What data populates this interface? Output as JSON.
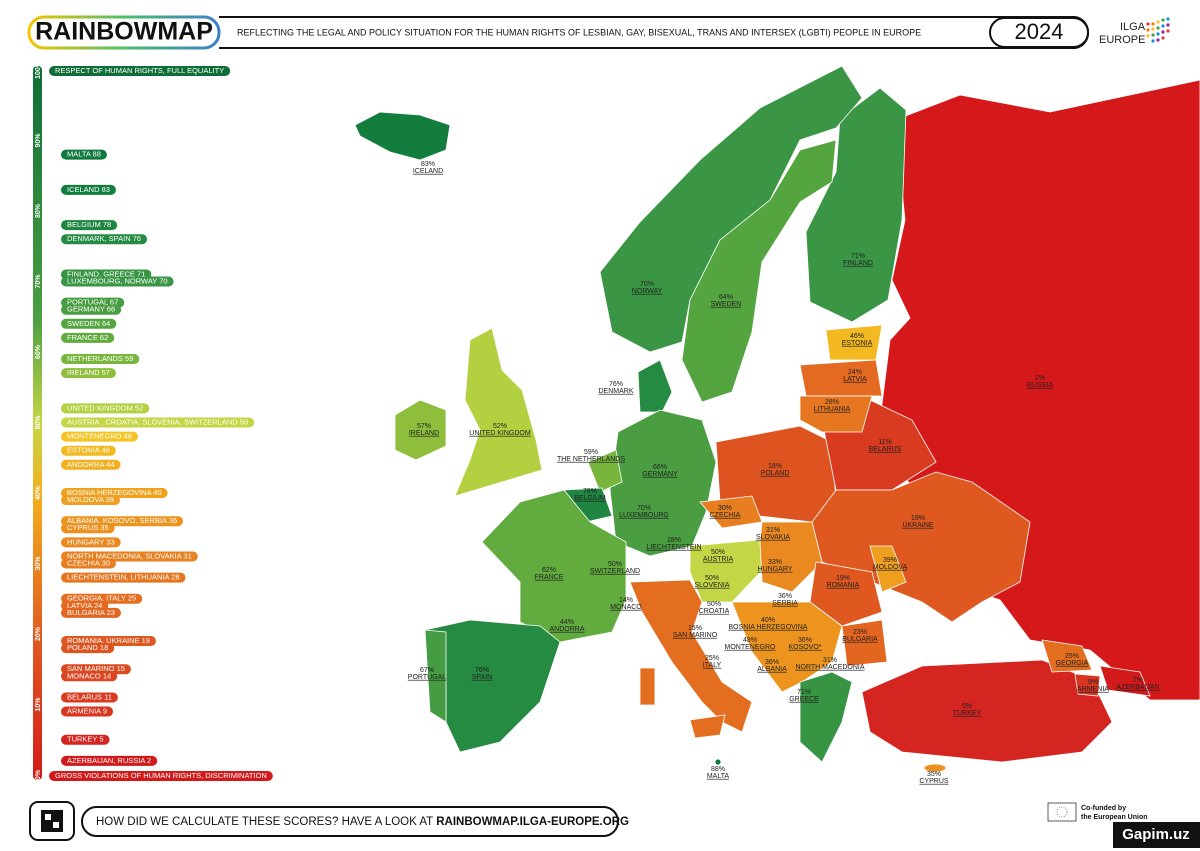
{
  "header": {
    "logo": "RAINBOWMAP",
    "subtitle": "REFLECTING THE LEGAL AND POLICY SITUATION FOR THE HUMAN RIGHTS OF LESBIAN, GAY, BISEXUAL, TRANS AND INTERSEX (LGBTI) PEOPLE IN EUROPE",
    "year": "2024",
    "org_line1": "ILGA",
    "org_line2": "EUROPE"
  },
  "scale": {
    "top_label": "RESPECT OF HUMAN RIGHTS, FULL EQUALITY",
    "bottom_label": "GROSS VIOLATIONS OF HUMAN RIGHTS, DISCRIMINATION",
    "range": [
      0,
      100
    ],
    "ticks": [
      {
        "value": 100,
        "label": "100%"
      },
      {
        "value": 90,
        "label": "90%"
      },
      {
        "value": 80,
        "label": "80%"
      },
      {
        "value": 70,
        "label": "70%"
      },
      {
        "value": 60,
        "label": "60%"
      },
      {
        "value": 50,
        "label": "50%"
      },
      {
        "value": 40,
        "label": "40%"
      },
      {
        "value": 30,
        "label": "30%"
      },
      {
        "value": 20,
        "label": "20%"
      },
      {
        "value": 10,
        "label": "10%"
      },
      {
        "value": 0,
        "label": "0%"
      }
    ],
    "items": [
      {
        "label": "MALTA 88",
        "value": 88,
        "color": "#0f7a3c"
      },
      {
        "label": "ICELAND 83",
        "value": 83,
        "color": "#137d3d"
      },
      {
        "label": "BELGIUM 78",
        "value": 78,
        "color": "#1f8641"
      },
      {
        "label": "DENMARK, SPAIN 76",
        "value": 76,
        "color": "#258a42"
      },
      {
        "label": "FINLAND, GREECE 71",
        "value": 71,
        "color": "#369443"
      },
      {
        "label": "LUXEMBOURG, NORWAY 70",
        "value": 70,
        "color": "#3a9644"
      },
      {
        "label": "PORTUGAL 67",
        "value": 67,
        "color": "#459c42"
      },
      {
        "label": "GERMANY 66",
        "value": 66,
        "color": "#4a9e41"
      },
      {
        "label": "SWEDEN 64",
        "value": 64,
        "color": "#54a540"
      },
      {
        "label": "FRANCE 62",
        "value": 62,
        "color": "#62ab3f"
      },
      {
        "label": "NETHERLANDS 59",
        "value": 59,
        "color": "#78b53d"
      },
      {
        "label": "IRELAND 57",
        "value": 57,
        "color": "#8ebe3c"
      },
      {
        "label": "UNITED KINGDOM 52",
        "value": 52,
        "color": "#b2d040"
      },
      {
        "label": "AUSTRIA , CROATIA, SLOVENIA, SWITZERLAND 50",
        "value": 50,
        "color": "#c4d646"
      },
      {
        "label": "MONTENEGRO 48",
        "value": 48,
        "color": "#f3c424"
      },
      {
        "label": "ESTONIA 46",
        "value": 46,
        "color": "#f3b921"
      },
      {
        "label": "ANDORRA 44",
        "value": 44,
        "color": "#f2b020"
      },
      {
        "label": "BOSNIA HERZEGOVINA 40",
        "value": 40,
        "color": "#f0a21f"
      },
      {
        "label": "MOLDOVA 39",
        "value": 39,
        "color": "#ef9e1f"
      },
      {
        "label": "ALBANIA, KOSOVO, SERBIA  36",
        "value": 36,
        "color": "#ed941f"
      },
      {
        "label": "CYPRUS 35",
        "value": 35,
        "color": "#ec901f"
      },
      {
        "label": "HUNGARY 33",
        "value": 33,
        "color": "#ea8920"
      },
      {
        "label": "NORTH MACEDONIA, SLOVAKIA 31",
        "value": 31,
        "color": "#e88220"
      },
      {
        "label": "CZECHIA 30",
        "value": 30,
        "color": "#e77e20"
      },
      {
        "label": "LIECHTENSTEIN, LITHUANIA 28",
        "value": 28,
        "color": "#e67720"
      },
      {
        "label": "GEORGIA, ITALY 25",
        "value": 25,
        "color": "#e46e20"
      },
      {
        "label": "LATVIA 24",
        "value": 24,
        "color": "#e36a20"
      },
      {
        "label": "BULGARIA 23",
        "value": 23,
        "color": "#e26620"
      },
      {
        "label": "ROMANIA, UKRAINE 19",
        "value": 19,
        "color": "#df5820"
      },
      {
        "label": "POLAND 18",
        "value": 18,
        "color": "#de5420"
      },
      {
        "label": "SAN MARINO 15",
        "value": 15,
        "color": "#dc4a20"
      },
      {
        "label": "MONACO 14",
        "value": 14,
        "color": "#db4620"
      },
      {
        "label": "BELARUS 11",
        "value": 11,
        "color": "#d93b20"
      },
      {
        "label": "ARMENIA 9",
        "value": 9,
        "color": "#d83420"
      },
      {
        "label": "TURKEY 5",
        "value": 5,
        "color": "#d52520"
      },
      {
        "label": "AZERBAIJAN, RUSSIA 2",
        "value": 2,
        "color": "#d21a1a"
      }
    ]
  },
  "map_labels": [
    {
      "pct": "83%",
      "name": "ICELAND"
    },
    {
      "pct": "70%",
      "name": "NORWAY"
    },
    {
      "pct": "64%",
      "name": "SWEDEN"
    },
    {
      "pct": "71%",
      "name": "FINLAND"
    },
    {
      "pct": "46%",
      "name": "ESTONIA"
    },
    {
      "pct": "24%",
      "name": "LATVIA"
    },
    {
      "pct": "28%",
      "name": "LITHUANIA"
    },
    {
      "pct": "2%",
      "name": "RUSSIA"
    },
    {
      "pct": "76%",
      "name": "DENMARK"
    },
    {
      "pct": "52%",
      "name": "UNITED KINGDOM"
    },
    {
      "pct": "57%",
      "name": "IRELAND"
    },
    {
      "pct": "59%",
      "name": "THE NETHERLANDS"
    },
    {
      "pct": "66%",
      "name": "GERMANY"
    },
    {
      "pct": "11%",
      "name": "BELARUS"
    },
    {
      "pct": "18%",
      "name": "POLAND"
    },
    {
      "pct": "78%",
      "name": "BELGIUM"
    },
    {
      "pct": "70%",
      "name": "LUXEMBOURG"
    },
    {
      "pct": "30%",
      "name": "CZECHIA"
    },
    {
      "pct": "19%",
      "name": "UKRAINE"
    },
    {
      "pct": "31%",
      "name": "SLOVAKIA"
    },
    {
      "pct": "28%",
      "name": "LIECHTENSTEIN"
    },
    {
      "pct": "50%",
      "name": "AUSTRIA"
    },
    {
      "pct": "39%",
      "name": "MOLDOVA"
    },
    {
      "pct": "33%",
      "name": "HUNGARY"
    },
    {
      "pct": "62%",
      "name": "FRANCE"
    },
    {
      "pct": "50%",
      "name": "SWITZERLAND"
    },
    {
      "pct": "19%",
      "name": "ROMANIA"
    },
    {
      "pct": "50%",
      "name": "SLOVENIA"
    },
    {
      "pct": "36%",
      "name": "SERBIA"
    },
    {
      "pct": "14%",
      "name": "MONACO"
    },
    {
      "pct": "50%",
      "name": "CROATIA"
    },
    {
      "pct": "40%",
      "name": "BOSNIA HERZEGOVINA"
    },
    {
      "pct": "44%",
      "name": "ANDORRA"
    },
    {
      "pct": "15%",
      "name": "SAN MARINO"
    },
    {
      "pct": "23%",
      "name": "BULGARIA"
    },
    {
      "pct": "48%",
      "name": "MONTENEGRO"
    },
    {
      "pct": "36%",
      "name": "KOSOVO*"
    },
    {
      "pct": "25%",
      "name": "GEORGIA"
    },
    {
      "pct": "31%",
      "name": "NORTH MACEDONIA"
    },
    {
      "pct": "36%",
      "name": "ALBANIA"
    },
    {
      "pct": "25%",
      "name": "ITALY"
    },
    {
      "pct": "67%",
      "name": "PORTUGAL"
    },
    {
      "pct": "76%",
      "name": "SPAIN"
    },
    {
      "pct": "9%",
      "name": "ARMENIA"
    },
    {
      "pct": "2%",
      "name": "AZERBAIJAN"
    },
    {
      "pct": "71%",
      "name": "GREECE"
    },
    {
      "pct": "5%",
      "name": "TURKEY"
    },
    {
      "pct": "88%",
      "name": "MALTA"
    },
    {
      "pct": "35%",
      "name": "CYPRUS"
    }
  ],
  "footer": {
    "cta_text": "HOW DID WE CALCULATE THESE SCORES? HAVE A LOOK AT ",
    "cta_link": "RAINBOWMAP.ILGA-EUROPE.ORG",
    "eu_line1": "Co-funded by",
    "eu_line2": "the European Union",
    "watermark": "Gapim.uz"
  }
}
